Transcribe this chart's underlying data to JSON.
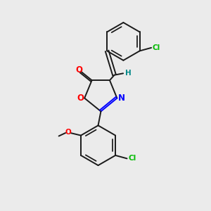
{
  "background_color": "#ebebeb",
  "bond_color": "#1a1a1a",
  "atom_colors": {
    "O": "#ff0000",
    "N": "#0000ff",
    "Cl": "#00bb00",
    "H": "#008888"
  },
  "figsize": [
    3.0,
    3.0
  ],
  "dpi": 100
}
